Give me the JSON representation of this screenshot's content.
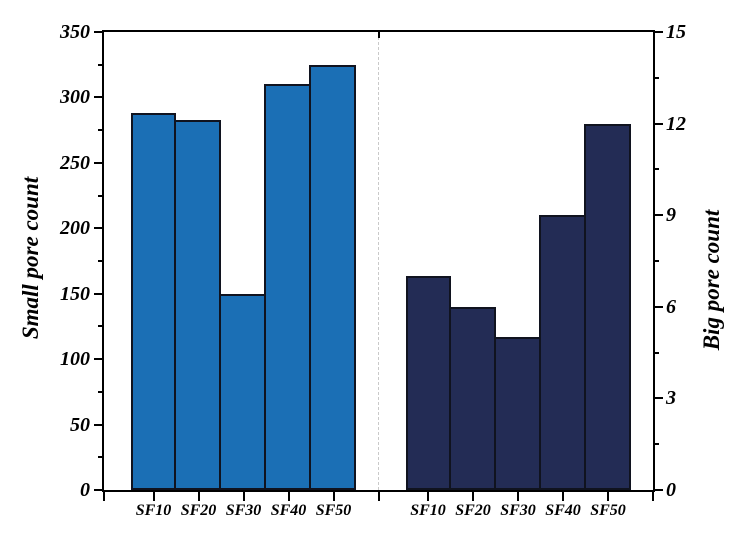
{
  "figure": {
    "background": "#ffffff",
    "frame_color": "#000000",
    "tick_color": "#000000",
    "text_color": "#000000"
  },
  "chart_data": {
    "type": "bar",
    "title": "",
    "layout": "two-panel dual y-axis, shared bottom category axis, dashed vertical separator between panels",
    "legend": "none",
    "grid": "off",
    "separator": {
      "style": "dashed",
      "color": "#c9c9c9"
    },
    "panels": [
      {
        "name": "small-pore",
        "ylabel": "Small pore count",
        "axis_side": "left",
        "ylim": [
          0,
          350
        ],
        "ytick_major": 50,
        "ytick_minor": 25,
        "ytick_labels": [
          "0",
          "50",
          "100",
          "150",
          "200",
          "250",
          "300",
          "350"
        ],
        "categories": [
          "SF10",
          "SF20",
          "SF30",
          "SF40",
          "SF50"
        ],
        "values": [
          288,
          283,
          150,
          310,
          325
        ],
        "bar_color": "#1b6fb5",
        "bar_border": "#10131f"
      },
      {
        "name": "big-pore",
        "ylabel": "Big pore count",
        "axis_side": "right",
        "ylim": [
          0,
          15
        ],
        "ytick_major": 3,
        "ytick_minor": 1.5,
        "ytick_labels": [
          "0",
          "3",
          "6",
          "9",
          "12",
          "15"
        ],
        "categories": [
          "SF10",
          "SF20",
          "SF30",
          "SF40",
          "SF50"
        ],
        "values": [
          7,
          6,
          5,
          9,
          12
        ],
        "bar_color": "#232c55",
        "bar_border": "#10131f"
      }
    ]
  }
}
